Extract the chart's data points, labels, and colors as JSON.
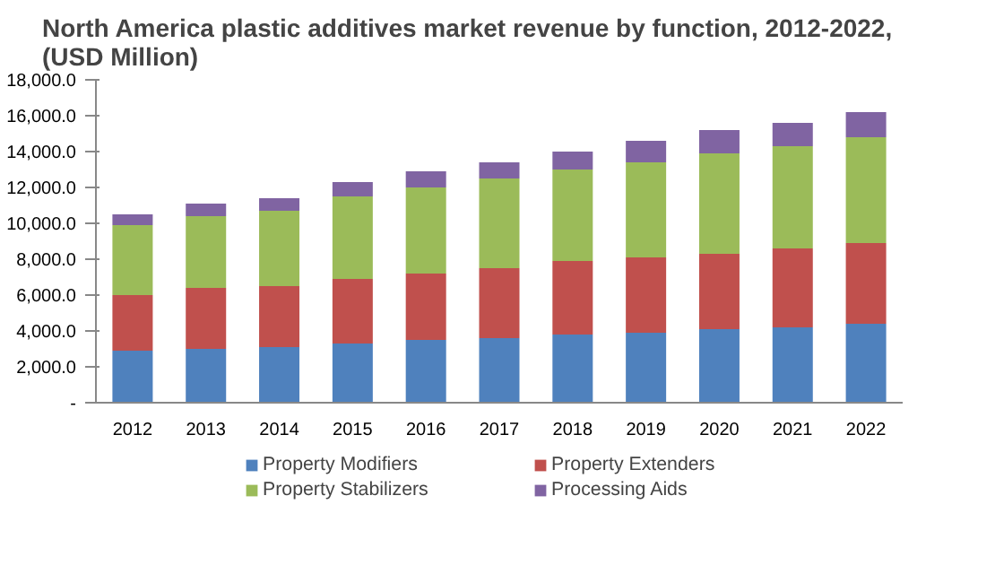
{
  "chart_data": {
    "type": "bar",
    "stacked": true,
    "title": "North America plastic additives market revenue by function, 2012-2022,\n(USD Million)",
    "categories": [
      "2012",
      "2013",
      "2014",
      "2015",
      "2016",
      "2017",
      "2018",
      "2019",
      "2020",
      "2021",
      "2022"
    ],
    "series": [
      {
        "name": "Property Modifiers",
        "color": "#4f81bd",
        "values": [
          2900,
          3000,
          3100,
          3300,
          3500,
          3600,
          3800,
          3900,
          4100,
          4200,
          4400
        ]
      },
      {
        "name": "Property Extenders",
        "color": "#c0504d",
        "values": [
          3100,
          3400,
          3400,
          3600,
          3700,
          3900,
          4100,
          4200,
          4200,
          4400,
          4500
        ]
      },
      {
        "name": "Property Stabilizers",
        "color": "#9bbb59",
        "values": [
          3900,
          4000,
          4200,
          4600,
          4800,
          5000,
          5100,
          5300,
          5600,
          5700,
          5900
        ]
      },
      {
        "name": "Processing Aids",
        "color": "#8064a2",
        "values": [
          600,
          700,
          700,
          800,
          900,
          900,
          1000,
          1200,
          1300,
          1300,
          1400
        ]
      }
    ],
    "ylim": [
      0,
      18000
    ],
    "yticks": [
      {
        "value": 0,
        "label": "-"
      },
      {
        "value": 2000,
        "label": "2,000.0"
      },
      {
        "value": 4000,
        "label": "4,000.0"
      },
      {
        "value": 6000,
        "label": "6,000.0"
      },
      {
        "value": 8000,
        "label": "8,000.0"
      },
      {
        "value": 10000,
        "label": "10,000.0"
      },
      {
        "value": 12000,
        "label": "12,000.0"
      },
      {
        "value": 14000,
        "label": "14,000.0"
      },
      {
        "value": 16000,
        "label": "16,000.0"
      },
      {
        "value": 18000,
        "label": "18,000.0"
      }
    ],
    "legend": "bottom",
    "grid": false
  }
}
